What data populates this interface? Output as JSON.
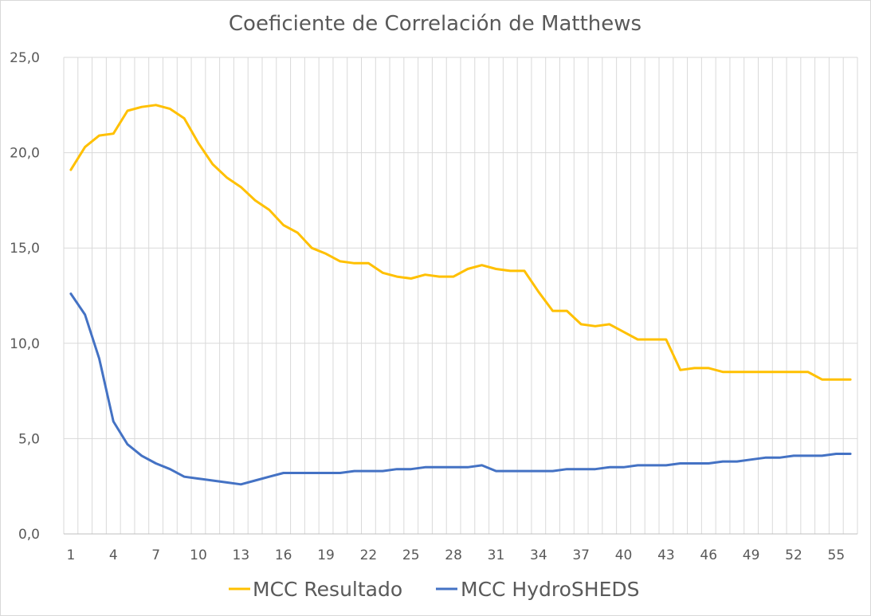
{
  "chart_data": {
    "type": "line",
    "title": "Coeficiente de Correlación de Matthews",
    "xlabel": "",
    "ylabel": "",
    "x": [
      1,
      2,
      3,
      4,
      5,
      6,
      7,
      8,
      9,
      10,
      11,
      12,
      13,
      14,
      15,
      16,
      17,
      18,
      19,
      20,
      21,
      22,
      23,
      24,
      25,
      26,
      27,
      28,
      29,
      30,
      31,
      32,
      33,
      34,
      35,
      36,
      37,
      38,
      39,
      40,
      41,
      42,
      43,
      44,
      45,
      46,
      47,
      48,
      49,
      50,
      51,
      52,
      53,
      54,
      55,
      56
    ],
    "x_tick_labels": [
      "1",
      "4",
      "7",
      "10",
      "13",
      "16",
      "19",
      "22",
      "25",
      "28",
      "31",
      "34",
      "37",
      "40",
      "43",
      "46",
      "49",
      "52",
      "55"
    ],
    "ylim": [
      0,
      25
    ],
    "y_ticks": [
      0,
      5,
      10,
      15,
      20,
      25
    ],
    "y_tick_labels": [
      "0,0",
      "5,0",
      "10,0",
      "15,0",
      "20,0",
      "25,0"
    ],
    "grid": true,
    "legend_position": "bottom",
    "series": [
      {
        "name": "MCC Resultado",
        "color": "#FFC000",
        "values": [
          19.1,
          20.3,
          20.9,
          21.0,
          22.2,
          22.4,
          22.5,
          22.3,
          21.8,
          20.5,
          19.4,
          18.7,
          18.2,
          17.5,
          17.0,
          16.2,
          15.8,
          15.0,
          14.7,
          14.3,
          14.2,
          14.2,
          13.7,
          13.5,
          13.4,
          13.6,
          13.5,
          13.5,
          13.9,
          14.1,
          13.9,
          13.8,
          13.8,
          12.7,
          11.7,
          11.7,
          11.0,
          10.9,
          11.0,
          10.6,
          10.2,
          10.2,
          10.2,
          8.6,
          8.7,
          8.7,
          8.5,
          8.5,
          8.5,
          8.5,
          8.5,
          8.5,
          8.5,
          8.1,
          8.1,
          8.1
        ]
      },
      {
        "name": "MCC HydroSHEDS",
        "color": "#4472C4",
        "values": [
          12.6,
          11.5,
          9.2,
          5.9,
          4.7,
          4.1,
          3.7,
          3.4,
          3.0,
          2.9,
          2.8,
          2.7,
          2.6,
          2.8,
          3.0,
          3.2,
          3.2,
          3.2,
          3.2,
          3.2,
          3.3,
          3.3,
          3.3,
          3.4,
          3.4,
          3.5,
          3.5,
          3.5,
          3.5,
          3.6,
          3.3,
          3.3,
          3.3,
          3.3,
          3.3,
          3.4,
          3.4,
          3.4,
          3.5,
          3.5,
          3.6,
          3.6,
          3.6,
          3.7,
          3.7,
          3.7,
          3.8,
          3.8,
          3.9,
          4.0,
          4.0,
          4.1,
          4.1,
          4.1,
          4.2,
          4.2
        ]
      }
    ]
  }
}
